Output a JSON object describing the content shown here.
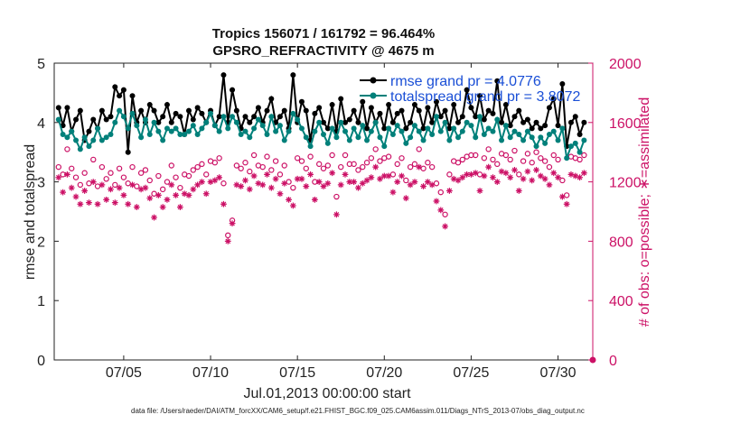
{
  "chart_data": {
    "type": "line",
    "title": "Tropics 156071 / 161792 = 96.464%",
    "subtitle": "GPSRO_REFRACTIVITY @ 4675 m",
    "xlabel": "Jul.01,2013 00:00:00 start",
    "ylabel": "rmse and totalspread",
    "y2label": "# of obs: o=possible; ∗=assimilated",
    "footnote": "data file: /Users/raeder/DAI/ATM_forcXX/CAM6_setup/f.e21.FHIST_BGC.f09_025.CAM6assim.011/Diags_NTrS_2013-07/obs_diag_output.nc",
    "xlim": [
      1,
      32
    ],
    "ylim": [
      0,
      5
    ],
    "y2lim": [
      0,
      2000
    ],
    "x_ticks": [
      5,
      10,
      15,
      20,
      25,
      30
    ],
    "x_tick_labels": [
      "07/05",
      "07/10",
      "07/15",
      "07/20",
      "07/25",
      "07/30"
    ],
    "y_ticks": [
      0,
      1,
      2,
      3,
      4,
      5
    ],
    "y_tick_labels": [
      "0",
      "1",
      "2",
      "3",
      "4",
      "5"
    ],
    "y2_ticks": [
      0,
      400,
      800,
      1200,
      1600,
      2000
    ],
    "y2_tick_labels": [
      "0",
      "400",
      "800",
      "1200",
      "1600",
      "2000"
    ],
    "legend": [
      "rmse grand pr = 4.0776",
      "totalspread grand pr = 3.8072"
    ],
    "legend_position": "top-right",
    "colors": {
      "rmse": "#000000",
      "spread": "#00807a",
      "obs": "#cc1166",
      "legend_text": "#1a4fd6"
    },
    "x": [
      1.25,
      1.5,
      1.75,
      2.0,
      2.25,
      2.5,
      2.75,
      3.0,
      3.25,
      3.5,
      3.75,
      4.0,
      4.25,
      4.5,
      4.75,
      5.0,
      5.25,
      5.5,
      5.75,
      6.0,
      6.25,
      6.5,
      6.75,
      7.0,
      7.25,
      7.5,
      7.75,
      8.0,
      8.25,
      8.5,
      8.75,
      9.0,
      9.25,
      9.5,
      9.75,
      10.0,
      10.25,
      10.5,
      10.75,
      11.0,
      11.25,
      11.5,
      11.75,
      12.0,
      12.25,
      12.5,
      12.75,
      13.0,
      13.25,
      13.5,
      13.75,
      14.0,
      14.25,
      14.5,
      14.75,
      15.0,
      15.25,
      15.5,
      15.75,
      16.0,
      16.25,
      16.5,
      16.75,
      17.0,
      17.25,
      17.5,
      17.75,
      18.0,
      18.25,
      18.5,
      18.75,
      19.0,
      19.25,
      19.5,
      19.75,
      20.0,
      20.25,
      20.5,
      20.75,
      21.0,
      21.25,
      21.5,
      21.75,
      22.0,
      22.25,
      22.5,
      22.75,
      23.0,
      23.25,
      23.5,
      23.75,
      24.0,
      24.25,
      24.5,
      24.75,
      25.0,
      25.25,
      25.5,
      25.75,
      26.0,
      26.25,
      26.5,
      26.75,
      27.0,
      27.25,
      27.5,
      27.75,
      28.0,
      28.25,
      28.5,
      28.75,
      29.0,
      29.25,
      29.5,
      29.75,
      30.0,
      30.25,
      30.5,
      30.75,
      31.0,
      31.25,
      31.5
    ],
    "series": [
      {
        "name": "rmse",
        "values": [
          4.25,
          3.95,
          4.25,
          3.85,
          4.05,
          4.2,
          3.7,
          3.85,
          4.05,
          3.9,
          4.2,
          4.05,
          4.1,
          4.6,
          4.45,
          4.55,
          3.5,
          4.45,
          4.0,
          4.2,
          4.0,
          4.3,
          4.2,
          4.0,
          4.1,
          4.3,
          4.0,
          4.15,
          4.1,
          3.8,
          4.2,
          4.05,
          4.25,
          4.15,
          4.0,
          4.2,
          3.95,
          4.1,
          4.8,
          4.0,
          4.55,
          4.2,
          3.9,
          4.1,
          4.0,
          4.1,
          4.25,
          4.0,
          4.2,
          4.4,
          4.0,
          4.1,
          4.2,
          3.9,
          4.8,
          4.0,
          4.35,
          4.2,
          3.7,
          4.15,
          4.25,
          4.0,
          3.9,
          4.3,
          3.85,
          4.4,
          4.0,
          4.05,
          4.2,
          4.0,
          4.35,
          3.9,
          4.25,
          4.0,
          4.15,
          3.9,
          4.3,
          4.0,
          4.15,
          4.2,
          3.9,
          4.0,
          4.3,
          4.2,
          3.9,
          4.25,
          4.0,
          4.35,
          4.1,
          4.2,
          3.9,
          4.3,
          4.0,
          4.1,
          4.55,
          4.25,
          4.1,
          4.45,
          4.05,
          4.2,
          4.15,
          4.7,
          4.0,
          4.3,
          3.95,
          4.1,
          4.2,
          4.0,
          4.05,
          3.9,
          4.0,
          3.9,
          3.95,
          4.25,
          4.4,
          3.95,
          4.65,
          3.6,
          4.0,
          4.1,
          3.8,
          4.0
        ],
        "marker": "circle"
      },
      {
        "name": "totalspread",
        "values": [
          4.05,
          3.8,
          3.75,
          3.85,
          3.7,
          3.55,
          3.75,
          3.6,
          3.7,
          3.9,
          3.7,
          3.75,
          3.8,
          4.0,
          4.2,
          4.1,
          3.9,
          4.15,
          3.95,
          3.75,
          4.05,
          3.8,
          4.0,
          3.85,
          3.7,
          3.9,
          3.85,
          3.9,
          3.8,
          3.8,
          3.85,
          3.95,
          3.8,
          3.9,
          4.0,
          4.15,
          3.95,
          3.85,
          4.1,
          3.9,
          4.1,
          4.0,
          3.8,
          3.85,
          3.75,
          3.9,
          4.05,
          3.95,
          3.8,
          4.1,
          3.85,
          3.95,
          3.7,
          3.85,
          4.15,
          4.05,
          3.9,
          3.75,
          3.6,
          3.85,
          4.0,
          3.8,
          3.65,
          3.9,
          3.75,
          4.0,
          3.85,
          3.7,
          3.9,
          3.75,
          3.95,
          3.7,
          3.85,
          4.0,
          3.75,
          3.6,
          3.9,
          3.8,
          3.95,
          3.85,
          3.65,
          3.75,
          3.95,
          3.85,
          3.7,
          3.9,
          3.8,
          4.1,
          3.85,
          4.0,
          3.7,
          3.9,
          3.75,
          3.85,
          4.0,
          3.95,
          3.75,
          4.1,
          3.8,
          3.9,
          3.85,
          4.05,
          3.7,
          3.95,
          3.75,
          3.85,
          3.8,
          3.7,
          3.85,
          3.75,
          3.6,
          3.75,
          3.65,
          3.8,
          3.85,
          3.7,
          3.9,
          3.4,
          3.6,
          3.65,
          3.5,
          3.7
        ],
        "marker": "circle"
      },
      {
        "name": "possible",
        "values": [
          1300,
          1250,
          1420,
          1290,
          1230,
          1180,
          1260,
          1190,
          1350,
          1170,
          1300,
          1220,
          1260,
          1180,
          1290,
          1230,
          1190,
          1300,
          1170,
          1260,
          1280,
          1210,
          1120,
          1240,
          1150,
          1200,
          1310,
          1230,
          1160,
          1250,
          1240,
          1280,
          1300,
          1320,
          1250,
          1340,
          1330,
          1360,
          1190,
          840,
          940,
          1310,
          1290,
          1330,
          1270,
          1380,
          1310,
          1300,
          1370,
          1280,
          1340,
          1250,
          1310,
          1200,
          1160,
          1360,
          1340,
          1290,
          1370,
          1200,
          1320,
          1290,
          1310,
          1380,
          1100,
          1300,
          1380,
          1320,
          1320,
          1280,
          1300,
          1330,
          1360,
          1420,
          1340,
          1360,
          1370,
          1250,
          1320,
          1360,
          1210,
          1300,
          1320,
          1420,
          1290,
          1330,
          1300,
          1190,
          1130,
          980,
          1250,
          1340,
          1330,
          1350,
          1370,
          1380,
          1380,
          1250,
          1360,
          1420,
          1350,
          1320,
          1390,
          1380,
          1350,
          1410,
          1250,
          1340,
          1390,
          1330,
          1400,
          1360,
          1340,
          1300,
          1380,
          1350,
          1210,
          1110,
          1370,
          1360,
          1350,
          1380
        ],
        "marker": "open-circle"
      },
      {
        "name": "assimilated",
        "values": [
          1230,
          1130,
          1250,
          1160,
          1100,
          1050,
          1140,
          1060,
          1200,
          1050,
          1180,
          1080,
          1150,
          1060,
          1160,
          1110,
          1050,
          1180,
          1030,
          1150,
          1160,
          1090,
          960,
          1110,
          1030,
          1080,
          1180,
          1110,
          1030,
          1120,
          1110,
          1150,
          1180,
          1200,
          1120,
          1200,
          1210,
          1230,
          1050,
          800,
          920,
          1180,
          1170,
          1210,
          1150,
          1240,
          1190,
          1180,
          1250,
          1160,
          1220,
          1120,
          1190,
          1080,
          1040,
          1220,
          1220,
          1170,
          1250,
          1080,
          1200,
          1170,
          1190,
          1260,
          980,
          1180,
          1250,
          1200,
          1200,
          1160,
          1190,
          1210,
          1230,
          1300,
          1220,
          1240,
          1240,
          1130,
          1200,
          1240,
          1090,
          1180,
          1200,
          1300,
          1170,
          1200,
          1180,
          1070,
          1010,
          900,
          1140,
          1220,
          1210,
          1230,
          1250,
          1250,
          1260,
          1140,
          1240,
          1300,
          1230,
          1200,
          1270,
          1260,
          1230,
          1280,
          1140,
          1220,
          1270,
          1210,
          1280,
          1240,
          1220,
          1180,
          1260,
          1230,
          1100,
          1050,
          1250,
          1240,
          1230,
          1260
        ],
        "marker": "asterisk"
      }
    ]
  }
}
